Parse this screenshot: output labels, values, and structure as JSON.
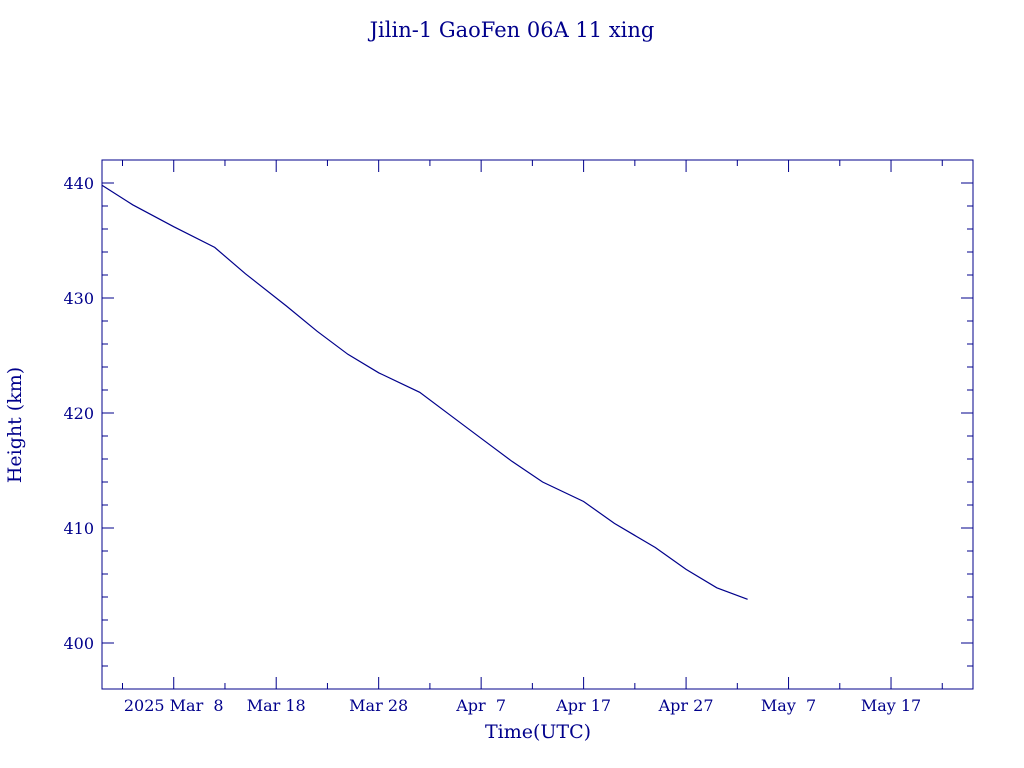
{
  "chart_data": {
    "type": "line",
    "title": "Jilin-1 GaoFen 06A 11 xing",
    "xlabel": "Time(UTC)",
    "ylabel": "Height (km)",
    "xlim": [
      "2025-03-01",
      "2025-05-25"
    ],
    "ylim": [
      396,
      442
    ],
    "x_ticks": [
      {
        "date": "2025-03-08",
        "label": "2025 Mar  8"
      },
      {
        "date": "2025-03-18",
        "label": "Mar 18"
      },
      {
        "date": "2025-03-28",
        "label": "Mar 28"
      },
      {
        "date": "2025-04-07",
        "label": "Apr  7"
      },
      {
        "date": "2025-04-17",
        "label": "Apr 17"
      },
      {
        "date": "2025-04-27",
        "label": "Apr 27"
      },
      {
        "date": "2025-05-07",
        "label": "May  7"
      },
      {
        "date": "2025-05-17",
        "label": "May 17"
      }
    ],
    "y_ticks": [
      400,
      410,
      420,
      430,
      440
    ],
    "grid": false,
    "colors": {
      "axis": "#00008b",
      "line": "#00008b"
    },
    "series": [
      {
        "x": [
          "2025-03-01",
          "2025-03-04",
          "2025-03-08",
          "2025-03-12",
          "2025-03-15",
          "2025-03-19",
          "2025-03-22",
          "2025-03-25",
          "2025-03-28",
          "2025-04-01",
          "2025-04-04",
          "2025-04-07",
          "2025-04-10",
          "2025-04-13",
          "2025-04-17",
          "2025-04-20",
          "2025-04-24",
          "2025-04-27",
          "2025-04-30",
          "2025-05-03"
        ],
        "y": [
          439.8,
          438.1,
          436.2,
          434.4,
          432.1,
          429.3,
          427.1,
          425.1,
          423.5,
          421.8,
          419.8,
          417.8,
          415.8,
          414.0,
          412.3,
          410.4,
          408.3,
          406.4,
          404.8,
          403.8
        ]
      }
    ]
  }
}
